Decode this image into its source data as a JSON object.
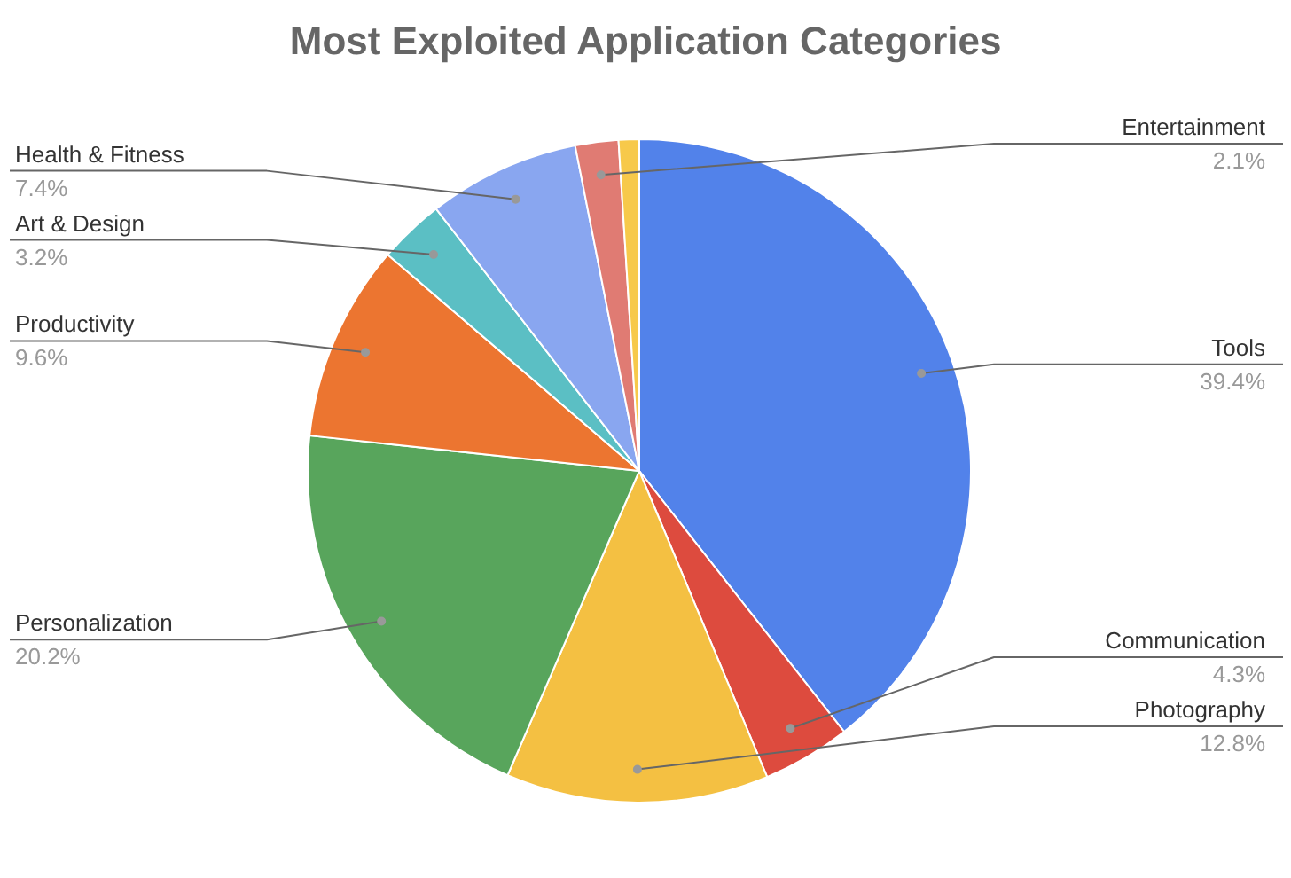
{
  "chart_data": {
    "type": "pie",
    "title": "Most Exploited Application Categories",
    "categories": [
      "Tools",
      "Communication",
      "Photography",
      "Personalization",
      "Productivity",
      "Art & Design",
      "Health & Fitness",
      "Entertainment",
      null
    ],
    "values": [
      39.4,
      4.3,
      12.8,
      20.2,
      9.6,
      3.2,
      7.4,
      2.1,
      1.0
    ],
    "value_labels": [
      "39.4%",
      "4.3%",
      "12.8%",
      "20.2%",
      "9.6%",
      "3.2%",
      "7.4%",
      "2.1%",
      null
    ],
    "colors": [
      "#5282ea",
      "#dd4b3e",
      "#f4c042",
      "#58a55c",
      "#ec7530",
      "#5bbfc4",
      "#89a6f0",
      "#e07b73",
      "#f7c94a"
    ]
  }
}
